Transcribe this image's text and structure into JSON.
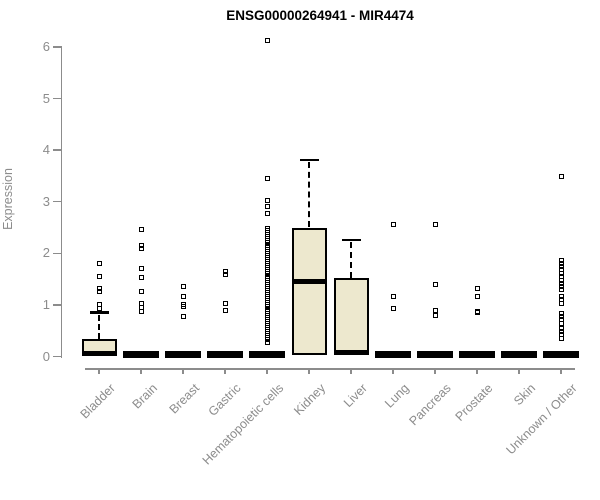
{
  "chart_data": {
    "type": "boxplot",
    "title": "ENSG00000264941 - MIR4474",
    "ylabel": "Expression",
    "ylim": [
      0,
      6
    ],
    "yticks": [
      0,
      1,
      2,
      3,
      4,
      5,
      6
    ],
    "grid": false,
    "legend": false,
    "box_fill": "#EDE8CE",
    "line_color": "#000000",
    "axis_color": "#8C8C8C",
    "categories": [
      "Bladder",
      "Brain",
      "Breast",
      "Gastric",
      "Hematopoietic cells",
      "Kidney",
      "Liver",
      "Lung",
      "Pancreas",
      "Prostate",
      "Skin",
      "Unknown / Other"
    ],
    "series": [
      {
        "category": "Bladder",
        "q1": 0,
        "median": 0,
        "q3": 0.34,
        "whisker_low": 0,
        "whisker_high": 0.85,
        "outliers": [
          1.81,
          1.55,
          1.32,
          1.26,
          1.0,
          0.93
        ]
      },
      {
        "category": "Brain",
        "q1": 0,
        "median": 0,
        "q3": 0,
        "whisker_low": 0,
        "whisker_high": 0,
        "outliers": [
          2.46,
          2.16,
          2.1,
          1.71,
          1.53,
          1.26,
          1.03,
          0.95,
          0.88
        ]
      },
      {
        "category": "Breast",
        "q1": 0,
        "median": 0,
        "q3": 0,
        "whisker_low": 0,
        "whisker_high": 0,
        "outliers": [
          1.35,
          1.16,
          1.0,
          0.97,
          0.77
        ]
      },
      {
        "category": "Gastric",
        "q1": 0,
        "median": 0,
        "q3": 0,
        "whisker_low": 0,
        "whisker_high": 0,
        "outliers": [
          1.64,
          1.58,
          1.03,
          0.9
        ]
      },
      {
        "category": "Hematopoietic cells",
        "q1": 0,
        "median": 0,
        "q3": 0,
        "whisker_low": 0,
        "whisker_high": 0,
        "outliers": [
          6.13,
          3.44,
          3.02,
          2.9,
          2.78,
          2.48,
          2.44,
          2.4,
          2.36,
          2.32,
          2.28,
          2.24,
          2.2,
          2.16,
          2.12,
          2.08,
          2.04,
          2.0,
          1.96,
          1.92,
          1.88,
          1.84,
          1.8,
          1.76,
          1.72,
          1.68,
          1.64,
          1.6,
          1.56,
          1.52,
          1.48,
          1.44,
          1.4,
          1.36,
          1.32,
          1.28,
          1.24,
          1.2,
          1.16,
          1.12,
          1.08,
          1.04,
          1.0,
          0.96,
          0.92,
          0.88,
          0.84,
          0.8,
          0.76,
          0.72,
          0.68,
          0.64,
          0.6,
          0.56,
          0.52,
          0.48,
          0.44,
          0.4,
          0.36,
          0.32,
          0.28
        ]
      },
      {
        "category": "Kidney",
        "q1": 0.02,
        "median": 1.45,
        "q3": 2.5,
        "whisker_low": 0.02,
        "whisker_high": 3.81,
        "outliers": []
      },
      {
        "category": "Liver",
        "q1": 0.02,
        "median": 0.02,
        "q3": 1.53,
        "whisker_low": 0.02,
        "whisker_high": 2.26,
        "outliers": []
      },
      {
        "category": "Lung",
        "q1": 0,
        "median": 0,
        "q3": 0,
        "whisker_low": 0,
        "whisker_high": 0,
        "outliers": [
          2.55,
          1.16,
          0.93
        ]
      },
      {
        "category": "Pancreas",
        "q1": 0,
        "median": 0,
        "q3": 0,
        "whisker_low": 0,
        "whisker_high": 0,
        "outliers": [
          2.55,
          1.4,
          0.9,
          0.8
        ]
      },
      {
        "category": "Prostate",
        "q1": 0,
        "median": 0,
        "q3": 0,
        "whisker_low": 0,
        "whisker_high": 0,
        "outliers": [
          1.32,
          1.16,
          0.88,
          0.85
        ]
      },
      {
        "category": "Skin",
        "q1": 0,
        "median": 0,
        "q3": 0,
        "whisker_low": 0,
        "whisker_high": 0,
        "outliers": []
      },
      {
        "category": "Unknown / Other",
        "q1": 0,
        "median": 0,
        "q3": 0,
        "whisker_low": 0,
        "whisker_high": 0,
        "outliers": [
          3.48,
          1.87,
          1.81,
          1.74,
          1.68,
          1.61,
          1.55,
          1.48,
          1.42,
          1.35,
          1.29,
          1.16,
          1.1,
          1.03,
          0.84,
          0.77,
          0.71,
          0.64,
          0.55,
          0.48,
          0.42,
          0.35
        ]
      }
    ]
  }
}
